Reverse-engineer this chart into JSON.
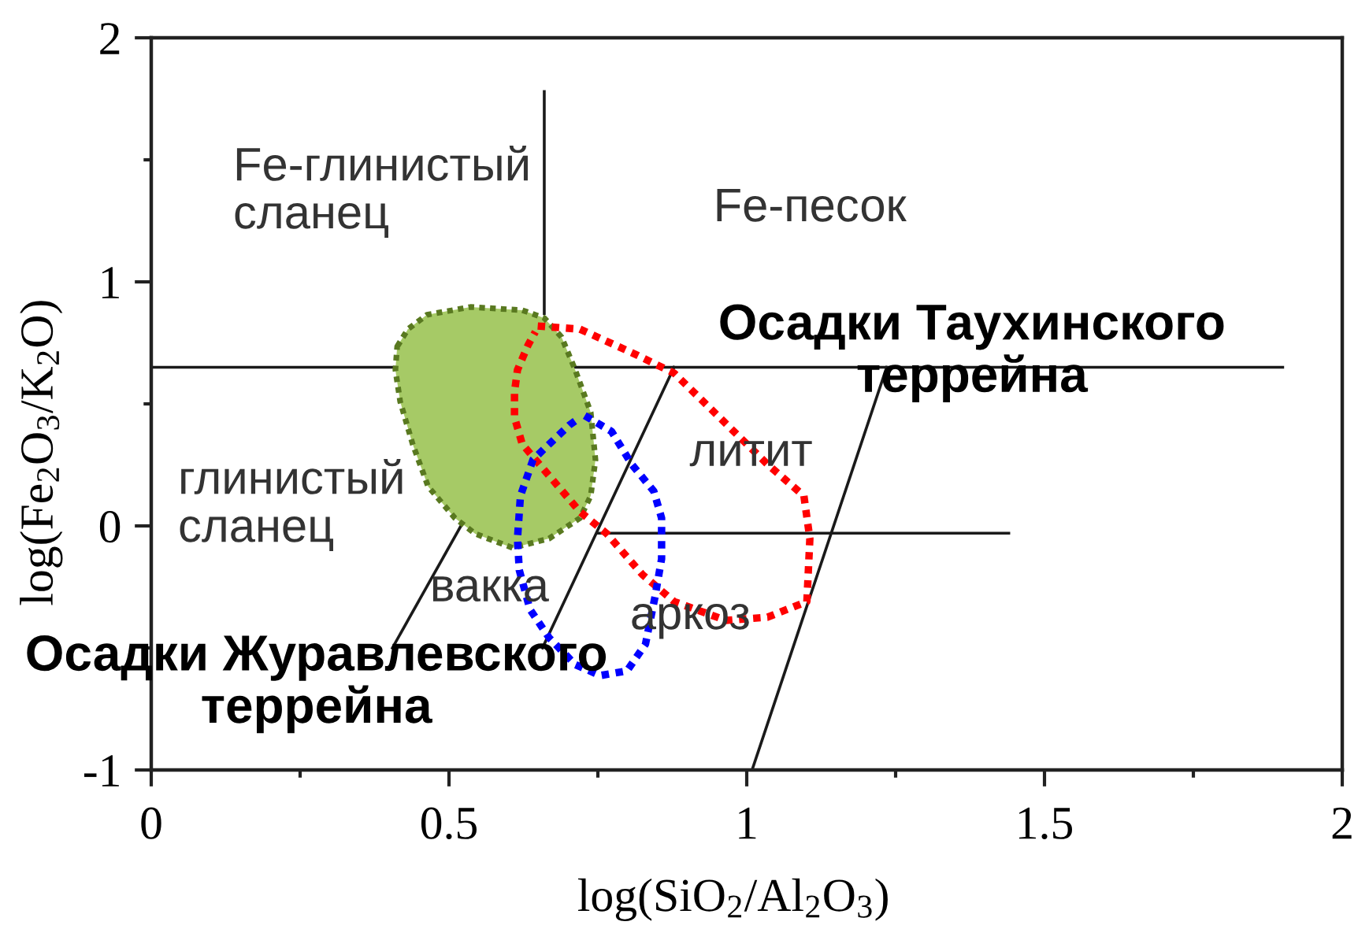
{
  "chart_data": {
    "type": "line",
    "xlabel": "log(SiO$_{2}$/Al$_{2}$O$_{3}$)",
    "ylabel": "log(Fe$_{2}$O$_{3}$/K$_{2}$O)",
    "xlim": [
      0,
      2
    ],
    "ylim": [
      -1,
      2
    ],
    "xticks": [
      0,
      {
        "value": 0.25,
        "label": null
      },
      0.5,
      {
        "value": 0.75,
        "label": null
      },
      1,
      {
        "value": 1.25,
        "label": null
      },
      1.5,
      {
        "value": 1.75,
        "label": null
      },
      2
    ],
    "yticks": [
      -1,
      {
        "value": -0.5,
        "label": null
      },
      0,
      {
        "value": 0.5,
        "label": null
      },
      1,
      {
        "value": 1.5,
        "label": null
      },
      2
    ],
    "line_style": "solid",
    "series": [
      {
        "color": "#1a1a1a",
        "x": [
          0,
          1.9
        ],
        "values": [
          0.65,
          0.65
        ]
      },
      {
        "color": "#1a1a1a",
        "x": [
          0.66,
          0.66
        ],
        "values": [
          0.87,
          1.78
        ]
      },
      {
        "color": "#1a1a1a",
        "x": [
          0.75,
          1.44
        ],
        "values": [
          -0.03,
          -0.03
        ]
      },
      {
        "color": "#1a1a1a",
        "x": [
          0.52,
          0.405
        ],
        "values": [
          0.0,
          -0.5
        ]
      },
      {
        "color": "#1a1a1a",
        "x": [
          0.878,
          0.657
        ],
        "values": [
          0.65,
          -0.5
        ]
      },
      {
        "color": "#1a1a1a",
        "x": [
          1.235,
          1.009
        ],
        "values": [
          0.65,
          -1.0
        ]
      },
      {
        "type": "area",
        "color": "#a6ca66",
        "line_style": "dotted",
        "x": [
          0.413,
          0.431,
          0.463,
          0.536,
          0.623,
          0.66,
          0.689,
          0.712,
          0.738,
          0.746,
          0.738,
          0.72,
          0.668,
          0.607,
          0.544,
          0.51,
          0.465,
          0.439,
          0.418,
          0.41
        ],
        "values": [
          0.735,
          0.806,
          0.865,
          0.897,
          0.884,
          0.852,
          0.774,
          0.639,
          0.465,
          0.271,
          0.123,
          0.032,
          -0.052,
          -0.09,
          -0.032,
          0.032,
          0.161,
          0.335,
          0.51,
          0.639
        ]
      },
      {
        "color": "#ff0000",
        "line_style": "dotted",
        "x": [
          0.649,
          0.72,
          0.807,
          0.878,
          0.965,
          1.035,
          1.096,
          1.106,
          1.101,
          1.035,
          0.965,
          0.878,
          0.825,
          0.765,
          0.72,
          0.668,
          0.623,
          0.61,
          0.61,
          0.615,
          0.633,
          0.645
        ],
        "values": [
          0.819,
          0.806,
          0.71,
          0.626,
          0.419,
          0.252,
          0.123,
          -0.052,
          -0.31,
          -0.374,
          -0.387,
          -0.31,
          -0.2,
          -0.032,
          0.058,
          0.206,
          0.335,
          0.445,
          0.548,
          0.639,
          0.742,
          0.795
        ]
      },
      {
        "color": "#0000ff",
        "line_style": "dotted",
        "x": [
          0.728,
          0.773,
          0.807,
          0.844,
          0.857,
          0.857,
          0.846,
          0.83,
          0.799,
          0.754,
          0.712,
          0.668,
          0.636,
          0.618,
          0.615,
          0.62,
          0.641,
          0.66,
          0.702,
          0.718
        ],
        "values": [
          0.452,
          0.387,
          0.252,
          0.142,
          0.032,
          -0.135,
          -0.29,
          -0.484,
          -0.594,
          -0.613,
          -0.568,
          -0.458,
          -0.342,
          -0.181,
          -0.052,
          0.123,
          0.271,
          0.316,
          0.413,
          0.441
        ]
      }
    ],
    "annotations": [
      "Fe-глинистый\nсланец",
      "Fe-песок",
      "глинистый\nсланец",
      "вакка",
      "литит",
      "аркоз",
      "Осадки Таухинского\nтеррейна",
      "Осадки Журавлевского\nтеррейна"
    ]
  }
}
